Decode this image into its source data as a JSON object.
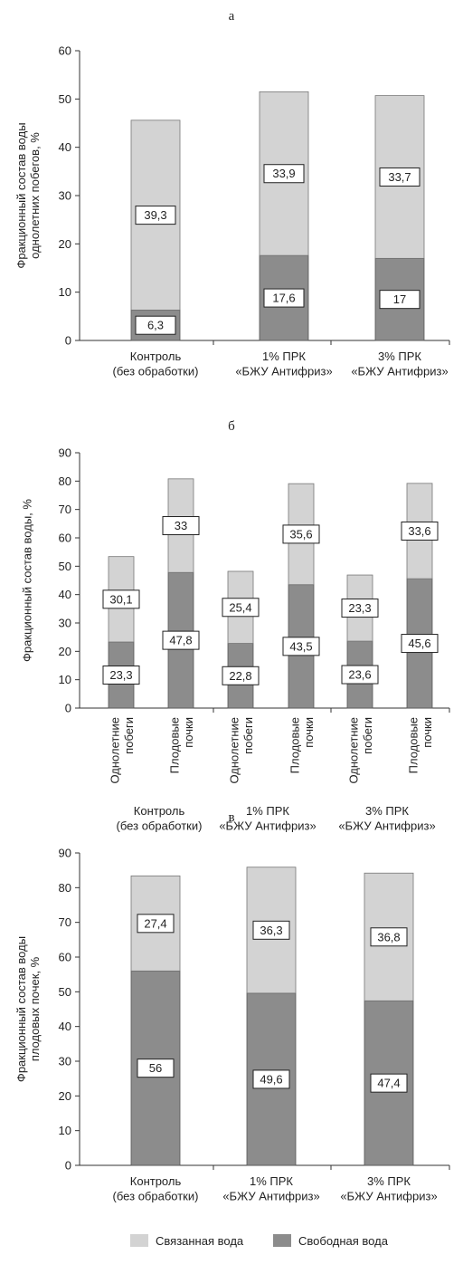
{
  "colors": {
    "bound": "#d3d3d3",
    "free": "#8c8c8c",
    "axis": "#333333",
    "label_box": "#ffffff"
  },
  "legend": {
    "bound": "Связанная вода",
    "free": "Свободная вода"
  },
  "chart_data": [
    {
      "panel": "а",
      "type": "bar",
      "stacked": true,
      "ylabel": "Фракционный состав воды однолетних побегов, %",
      "ylim": [
        0,
        60
      ],
      "yticks": [
        0,
        10,
        20,
        30,
        40,
        50,
        60
      ],
      "categories": [
        [
          "Контроль",
          "(без обработки)"
        ],
        [
          "1% ПРК",
          "«БЖУ Антифриз»"
        ],
        [
          "3% ПРК",
          "«БЖУ Антифриз»"
        ]
      ],
      "series": [
        {
          "name": "Свободная вода",
          "values": [
            6.3,
            17.6,
            17
          ],
          "labels": [
            "6,3",
            "17,6",
            "17"
          ]
        },
        {
          "name": "Связанная вода",
          "values": [
            39.3,
            33.9,
            33.7
          ],
          "labels": [
            "39,3",
            "33,9",
            "33,7"
          ]
        }
      ]
    },
    {
      "panel": "б",
      "type": "bar",
      "stacked": true,
      "ylabel": "Фракционный состав воды, %",
      "ylim": [
        0,
        90
      ],
      "yticks": [
        0,
        10,
        20,
        30,
        40,
        50,
        60,
        70,
        80,
        90
      ],
      "categories": [
        [
          "Однолетние",
          "побеги"
        ],
        [
          "Плодовые",
          "почки"
        ],
        [
          "Однолетние",
          "побеги"
        ],
        [
          "Плодовые",
          "почки"
        ],
        [
          "Однолетние",
          "побеги"
        ],
        [
          "Плодовые",
          "почки"
        ]
      ],
      "groups": [
        [
          "Контроль",
          "(без обработки)"
        ],
        [
          "1% ПРК",
          "«БЖУ Антифриз»"
        ],
        [
          "3% ПРК",
          "«БЖУ Антифриз»"
        ]
      ],
      "series": [
        {
          "name": "Свободная вода",
          "values": [
            23.3,
            47.8,
            22.8,
            43.5,
            23.6,
            45.6
          ],
          "labels": [
            "23,3",
            "47,8",
            "22,8",
            "43,5",
            "23,6",
            "45,6"
          ]
        },
        {
          "name": "Связанная вода",
          "values": [
            30.1,
            33,
            25.4,
            35.6,
            23.3,
            33.6
          ],
          "labels": [
            "30,1",
            "33",
            "25,4",
            "35,6",
            "23,3",
            "33,6"
          ]
        }
      ]
    },
    {
      "panel": "в",
      "type": "bar",
      "stacked": true,
      "ylabel": "Фракционный состав воды плодовых почек, %",
      "ylim": [
        0,
        90
      ],
      "yticks": [
        0,
        10,
        20,
        30,
        40,
        50,
        60,
        70,
        80,
        90
      ],
      "categories": [
        [
          "Контроль",
          "(без обработки)"
        ],
        [
          "1% ПРК",
          "«БЖУ Антифриз»"
        ],
        [
          "3% ПРК",
          "«БЖУ Антифриз»"
        ]
      ],
      "series": [
        {
          "name": "Свободная вода",
          "values": [
            56,
            49.6,
            47.4
          ],
          "labels": [
            "56",
            "49,6",
            "47,4"
          ]
        },
        {
          "name": "Связанная вода",
          "values": [
            27.4,
            36.3,
            36.8
          ],
          "labels": [
            "27,4",
            "36,3",
            "36,8"
          ]
        }
      ]
    }
  ]
}
